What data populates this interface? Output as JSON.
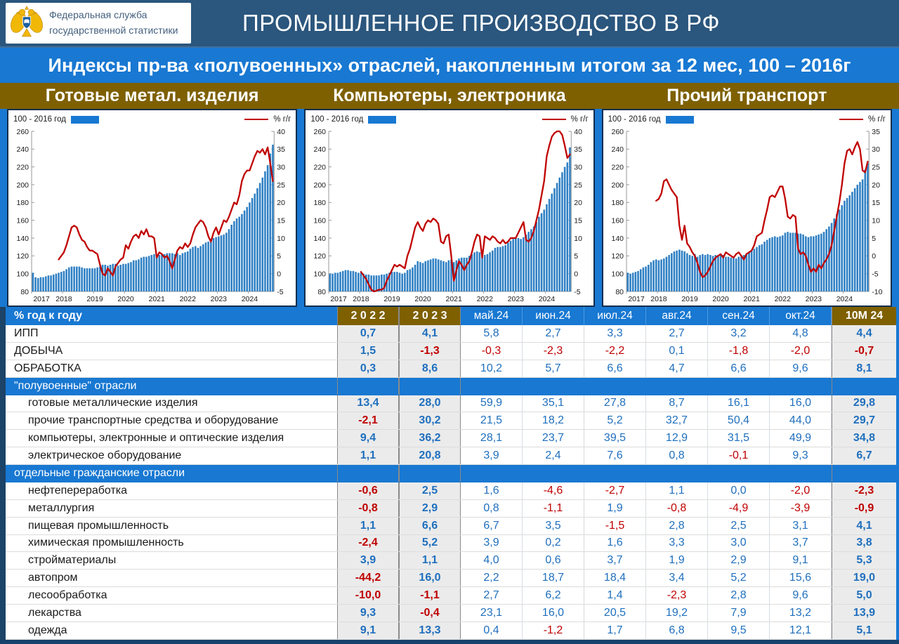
{
  "header": {
    "logo_line1": "Федеральная служба",
    "logo_line2": "государственной статистики",
    "title": "ПРОМЫШЛЕННОЕ ПРОИЗВОДСТВО В РФ"
  },
  "subtitle": "Индексы пр-ва «полувоенных» отраслей, накопленным итогом за 12 мес, 100 – 2016г",
  "legend": {
    "bars_label": "100 - 2016 год",
    "line_label": "% г/г"
  },
  "colors": {
    "navy": "#2B567D",
    "accent_blue": "#1878D2",
    "olive": "#7E6000",
    "bar_blue": "#2F80C4",
    "line_red": "#C00000",
    "value_blue": "#1F6FBE",
    "value_red": "#C00000"
  },
  "chart_data": [
    {
      "type": "bar+line",
      "title": "Готовые метал. изделия",
      "x_years": [
        2017,
        2018,
        2019,
        2020,
        2021,
        2022,
        2023,
        2024
      ],
      "left_axis": {
        "min": 80,
        "max": 260,
        "step": 20,
        "label": "100 - 2016 год"
      },
      "right_axis": {
        "min": -5,
        "max": 40,
        "step": 5,
        "label": "% г/г"
      },
      "bars": [
        101,
        96,
        95,
        96,
        96,
        97,
        98,
        98,
        99,
        100,
        101,
        102,
        103,
        105,
        107,
        108,
        108,
        108,
        108,
        107,
        106,
        106,
        106,
        106,
        106,
        107,
        108,
        110,
        110,
        109,
        110,
        111,
        111,
        109,
        110,
        111,
        111,
        112,
        113,
        115,
        115,
        116,
        118,
        119,
        119,
        120,
        121,
        122,
        120,
        121,
        122,
        122,
        123,
        123,
        123,
        122,
        123,
        121,
        123,
        124,
        125,
        128,
        130,
        131,
        129,
        131,
        133,
        135,
        136,
        138,
        140,
        141,
        142,
        143,
        144,
        146,
        150,
        155,
        159,
        162,
        164,
        167,
        171,
        175,
        180,
        185,
        190,
        196,
        202,
        208,
        215,
        222,
        235,
        245
      ],
      "line": [
        null,
        null,
        null,
        null,
        null,
        null,
        null,
        null,
        null,
        null,
        4,
        5,
        6,
        8,
        10.5,
        13,
        13.5,
        13,
        11,
        9.5,
        9,
        7.5,
        6.5,
        6.5,
        6,
        5.5,
        2.5,
        0,
        -0.5,
        1.5,
        0.5,
        -0.5,
        2,
        3,
        4,
        4.5,
        8,
        7,
        9,
        10.5,
        11,
        10,
        12,
        11,
        12.5,
        10.5,
        10.5,
        10,
        4.5,
        6,
        5.5,
        4.5,
        5,
        3.5,
        1.5,
        4,
        6.5,
        7.5,
        7,
        8.5,
        7.5,
        8.5,
        11,
        13,
        14,
        15,
        14.5,
        13,
        10.5,
        9,
        11.5,
        13,
        11,
        13,
        15,
        14.5,
        16,
        18,
        20,
        19.5,
        22,
        26,
        28,
        29,
        29,
        31,
        33,
        34.5,
        34,
        35,
        33.5,
        35.5,
        31,
        26
      ]
    },
    {
      "type": "bar+line",
      "title": "Компьютеры, электроника",
      "x_years": [
        2017,
        2018,
        2019,
        2020,
        2021,
        2022,
        2023,
        2024
      ],
      "left_axis": {
        "min": 80,
        "max": 260,
        "step": 20,
        "label": "100 - 2016 год"
      },
      "right_axis": {
        "min": -5,
        "max": 40,
        "step": 5,
        "label": "% г/г"
      },
      "bars": [
        100,
        100,
        101,
        101,
        102,
        103,
        104,
        104,
        103,
        103,
        102,
        101,
        101,
        100,
        99,
        99,
        98,
        98,
        98,
        98,
        99,
        99,
        100,
        101,
        102,
        102,
        102,
        101,
        100,
        101,
        104,
        105,
        107,
        110,
        114,
        113,
        112,
        114,
        115,
        116,
        117,
        117,
        116,
        115,
        114,
        113,
        115,
        116,
        113,
        115,
        117,
        118,
        118,
        118,
        120,
        122,
        124,
        125,
        124,
        122,
        121,
        122,
        124,
        126,
        129,
        130,
        130,
        131,
        132,
        135,
        137,
        139,
        140,
        140,
        139,
        141,
        144,
        147,
        150,
        153,
        158,
        164,
        168,
        172,
        178,
        184,
        190,
        196,
        202,
        208,
        214,
        220,
        225,
        242
      ],
      "line": [
        null,
        null,
        null,
        null,
        null,
        null,
        null,
        null,
        null,
        null,
        null,
        null,
        0.5,
        -0.5,
        -1.5,
        -3,
        -4.5,
        -5,
        -4.8,
        -4.5,
        -4.5,
        -4,
        -2,
        -0.5,
        1,
        2.5,
        2,
        2.5,
        2,
        1.5,
        5,
        7,
        10,
        13,
        14.5,
        13,
        12,
        14,
        15,
        14.5,
        15.5,
        15,
        14,
        9,
        8.5,
        10.5,
        11,
        5,
        -2,
        1,
        3.5,
        2.5,
        1,
        2.5,
        3.5,
        6,
        9,
        11,
        10.5,
        4.5,
        10.5,
        10,
        9.5,
        10.5,
        10,
        9,
        8.5,
        9.5,
        8.5,
        9,
        10,
        10,
        10,
        11.5,
        13,
        14.5,
        9.5,
        9,
        10,
        12,
        15,
        18,
        22,
        26,
        33,
        36,
        38.5,
        39.5,
        40,
        40,
        39,
        36,
        32.5,
        33.5
      ]
    },
    {
      "type": "bar+line",
      "title": "Прочий транспорт",
      "x_years": [
        2017,
        2018,
        2019,
        2020,
        2021,
        2022,
        2023,
        2024
      ],
      "left_axis": {
        "min": 80,
        "max": 260,
        "step": 20,
        "label": "100 - 2016 год"
      },
      "right_axis": {
        "min": -10,
        "max": 35,
        "step": 5,
        "label": "% г/г"
      },
      "bars": [
        101,
        100,
        101,
        102,
        103,
        105,
        107,
        108,
        110,
        113,
        115,
        116,
        115,
        116,
        117,
        119,
        121,
        123,
        125,
        126,
        127,
        126,
        125,
        123,
        121,
        120,
        122,
        119,
        121,
        122,
        121,
        122,
        121,
        120,
        121,
        121,
        122,
        121,
        119,
        119,
        118,
        119,
        117,
        119,
        120,
        121,
        123,
        124,
        126,
        128,
        130,
        132,
        133,
        136,
        138,
        140,
        141,
        142,
        141,
        142,
        143,
        146,
        147,
        146,
        146,
        146,
        145,
        145,
        144,
        142,
        141,
        142,
        142,
        143,
        144,
        145,
        147,
        150,
        153,
        157,
        162,
        167,
        172,
        177,
        182,
        185,
        188,
        192,
        196,
        200,
        203,
        206,
        217,
        225
      ],
      "line": [
        null,
        null,
        null,
        null,
        null,
        null,
        null,
        null,
        null,
        null,
        null,
        15.5,
        16,
        17.5,
        21,
        21.5,
        20,
        18.5,
        17.5,
        16.5,
        8.5,
        4.5,
        8.5,
        3.5,
        2.5,
        1,
        0,
        -2,
        -4.5,
        -6,
        -5.5,
        -4.5,
        -3,
        -1.5,
        -0.5,
        0,
        0.5,
        -0.5,
        1,
        0.5,
        0,
        -0.5,
        0.5,
        1,
        0,
        -1,
        0.5,
        1,
        1.5,
        3,
        5.5,
        6,
        6.5,
        10,
        13,
        16.5,
        17,
        16.5,
        18,
        19.5,
        19.5,
        16,
        11,
        10.5,
        11.5,
        11,
        2,
        0.5,
        1,
        0,
        -2.5,
        -4.5,
        -3.5,
        -4.5,
        -2.5,
        -3.5,
        -2,
        -1,
        0.5,
        3,
        7,
        11,
        15,
        20,
        26,
        29.5,
        30,
        28.5,
        30.5,
        32,
        30,
        24,
        23.5,
        26.5
      ]
    }
  ],
  "table": {
    "corner_label": "% год к году",
    "columns": [
      "2 0 2 2",
      "2 0 2 3",
      "май.24",
      "июн.24",
      "июл.24",
      "авг.24",
      "сен.24",
      "окт.24",
      "10М 24"
    ],
    "rows": [
      {
        "label": "ИПП",
        "indent": false,
        "section": false,
        "values": [
          "0,7",
          "4,1",
          "5,8",
          "2,7",
          "3,3",
          "2,7",
          "3,2",
          "4,8",
          "4,4"
        ]
      },
      {
        "label": "ДОБЫЧА",
        "indent": false,
        "section": false,
        "values": [
          "1,5",
          "-1,3",
          "-0,3",
          "-2,3",
          "-2,2",
          "0,1",
          "-1,8",
          "-2,0",
          "-0,7"
        ]
      },
      {
        "label": "ОБРАБОТКА",
        "indent": false,
        "section": false,
        "values": [
          "0,3",
          "8,6",
          "10,2",
          "5,7",
          "6,6",
          "4,7",
          "6,6",
          "9,6",
          "8,1"
        ]
      },
      {
        "label": "\"полувоенные\" отрасли",
        "indent": false,
        "section": true,
        "values": []
      },
      {
        "label": "готовые металлические изделия",
        "indent": true,
        "section": false,
        "values": [
          "13,4",
          "28,0",
          "59,9",
          "35,1",
          "27,8",
          "8,7",
          "16,1",
          "16,0",
          "29,8"
        ]
      },
      {
        "label": "прочие транспортные средства и оборудование",
        "indent": true,
        "section": false,
        "values": [
          "-2,1",
          "30,2",
          "21,5",
          "18,2",
          "5,2",
          "32,7",
          "50,4",
          "44,0",
          "29,7"
        ]
      },
      {
        "label": "компьютеры, электронные и оптические изделия",
        "indent": true,
        "section": false,
        "values": [
          "9,4",
          "36,2",
          "28,1",
          "23,7",
          "39,5",
          "12,9",
          "31,5",
          "49,9",
          "34,8"
        ]
      },
      {
        "label": "электрическое оборудование",
        "indent": true,
        "section": false,
        "values": [
          "1,1",
          "20,8",
          "3,9",
          "2,4",
          "7,6",
          "0,8",
          "-0,1",
          "9,3",
          "6,7"
        ]
      },
      {
        "label": "отдельные гражданские отрасли",
        "indent": false,
        "section": true,
        "values": []
      },
      {
        "label": "нефтепереработка",
        "indent": true,
        "section": false,
        "values": [
          "-0,6",
          "2,5",
          "1,6",
          "-4,6",
          "-2,7",
          "1,1",
          "0,0",
          "-2,0",
          "-2,3"
        ]
      },
      {
        "label": "металлургия",
        "indent": true,
        "section": false,
        "values": [
          "-0,8",
          "2,9",
          "0,8",
          "-1,1",
          "1,9",
          "-0,8",
          "-4,9",
          "-3,9",
          "-0,9"
        ]
      },
      {
        "label": "пищевая промышленность",
        "indent": true,
        "section": false,
        "values": [
          "1,1",
          "6,6",
          "6,7",
          "3,5",
          "-1,5",
          "2,8",
          "2,5",
          "3,1",
          "4,1"
        ]
      },
      {
        "label": "химическая промышленность",
        "indent": true,
        "section": false,
        "values": [
          "-2,4",
          "5,2",
          "3,9",
          "0,2",
          "1,6",
          "3,3",
          "3,0",
          "3,7",
          "3,8"
        ]
      },
      {
        "label": "стройматериалы",
        "indent": true,
        "section": false,
        "values": [
          "3,9",
          "1,1",
          "4,0",
          "0,6",
          "3,7",
          "1,9",
          "2,9",
          "9,1",
          "5,3"
        ]
      },
      {
        "label": "автопром",
        "indent": true,
        "section": false,
        "values": [
          "-44,2",
          "16,0",
          "2,2",
          "18,7",
          "18,4",
          "3,4",
          "5,2",
          "15,6",
          "19,0"
        ]
      },
      {
        "label": "лесообработка",
        "indent": true,
        "section": false,
        "values": [
          "-10,0",
          "-1,1",
          "2,7",
          "6,2",
          "1,4",
          "-2,3",
          "2,8",
          "9,6",
          "5,0"
        ]
      },
      {
        "label": "лекарства",
        "indent": true,
        "section": false,
        "values": [
          "9,3",
          "-0,4",
          "23,1",
          "16,0",
          "20,5",
          "19,2",
          "7,9",
          "13,2",
          "13,9"
        ]
      },
      {
        "label": "одежда",
        "indent": true,
        "section": false,
        "values": [
          "9,1",
          "13,3",
          "0,4",
          "-1,2",
          "1,7",
          "6,8",
          "9,5",
          "12,1",
          "5,1"
        ]
      }
    ]
  }
}
